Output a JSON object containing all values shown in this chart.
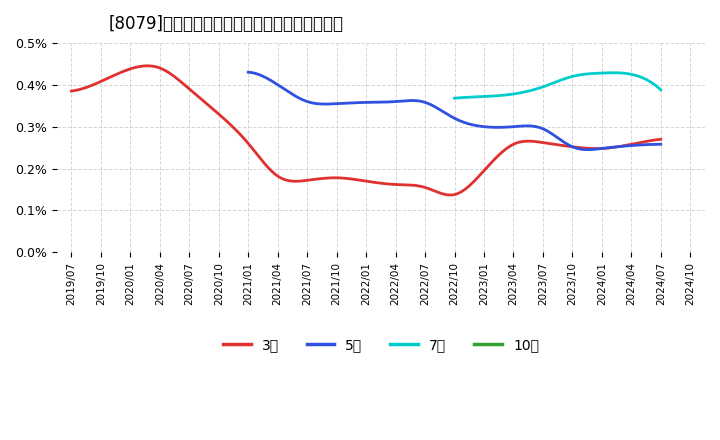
{
  "title": "[8079]　当期純利益マージンの標準偏差の推移",
  "ylim": [
    0.0,
    0.005
  ],
  "yticks": [
    0.0,
    0.001,
    0.002,
    0.003,
    0.004,
    0.005
  ],
  "ytick_labels": [
    "0.0%",
    "0.1%",
    "0.2%",
    "0.3%",
    "0.4%",
    "0.5%"
  ],
  "background_color": "#ffffff",
  "grid_color": "#cccccc",
  "series": {
    "3year": {
      "color": "#e03030",
      "label": "3年",
      "x": [
        "2019/07",
        "2019/10",
        "2020/01",
        "2020/04",
        "2020/07",
        "2020/10",
        "2021/01",
        "2021/04",
        "2021/07",
        "2021/10",
        "2022/01",
        "2022/04",
        "2022/07",
        "2022/10",
        "2023/01",
        "2023/04",
        "2023/07",
        "2023/10",
        "2024/01",
        "2024/04",
        "2024/07"
      ],
      "y": [
        0.00385,
        0.00408,
        0.00438,
        0.0044,
        0.0039,
        0.0033,
        0.0026,
        0.00182,
        0.00172,
        0.00178,
        0.0017,
        0.00162,
        0.00155,
        0.00138,
        0.00195,
        0.00258,
        0.00262,
        0.00252,
        0.00248,
        0.00258,
        0.0027
      ]
    },
    "5year": {
      "color": "#3050e0",
      "label": "5年",
      "x": [
        "2019/07",
        "2019/10",
        "2020/01",
        "2020/04",
        "2020/07",
        "2020/10",
        "2021/01",
        "2021/04",
        "2021/07",
        "2021/10",
        "2022/01",
        "2022/04",
        "2022/07",
        "2022/10",
        "2023/01",
        "2023/04",
        "2023/07",
        "2023/10",
        "2024/01",
        "2024/04",
        "2024/07"
      ],
      "y": [
        null,
        null,
        null,
        null,
        null,
        null,
        0.0043,
        0.004,
        0.0036,
        0.00355,
        0.00358,
        0.0036,
        0.00358,
        0.0032,
        0.003,
        0.003,
        0.00295,
        0.00252,
        0.00248,
        0.00255,
        0.00258
      ]
    },
    "7year": {
      "color": "#00cccc",
      "label": "7年",
      "x": [
        "2019/07",
        "2019/10",
        "2020/01",
        "2020/04",
        "2020/07",
        "2020/10",
        "2021/01",
        "2021/04",
        "2021/07",
        "2021/10",
        "2022/01",
        "2022/04",
        "2022/07",
        "2022/10",
        "2023/01",
        "2023/04",
        "2023/07",
        "2023/10",
        "2024/01",
        "2024/04",
        "2024/07"
      ],
      "y": [
        null,
        null,
        null,
        null,
        null,
        null,
        null,
        null,
        null,
        null,
        null,
        null,
        null,
        0.00368,
        0.00372,
        0.00378,
        0.00395,
        0.0042,
        0.00428,
        0.00425,
        0.00388
      ]
    },
    "10year": {
      "color": "#30a030",
      "label": "10年",
      "x": [],
      "y": []
    }
  },
  "xtick_labels": [
    "2019/07",
    "2019/10",
    "2020/01",
    "2020/04",
    "2020/07",
    "2020/10",
    "2021/01",
    "2021/04",
    "2021/07",
    "2021/10",
    "2022/01",
    "2022/04",
    "2022/07",
    "2022/10",
    "2023/01",
    "2023/04",
    "2023/07",
    "2023/10",
    "2024/01",
    "2024/04",
    "2024/07",
    "2024/10"
  ],
  "legend_labels": [
    "3年",
    "5年",
    "7年",
    "10年"
  ],
  "legend_colors": [
    "#e03030",
    "#3050e0",
    "#00cccc",
    "#30a030"
  ]
}
